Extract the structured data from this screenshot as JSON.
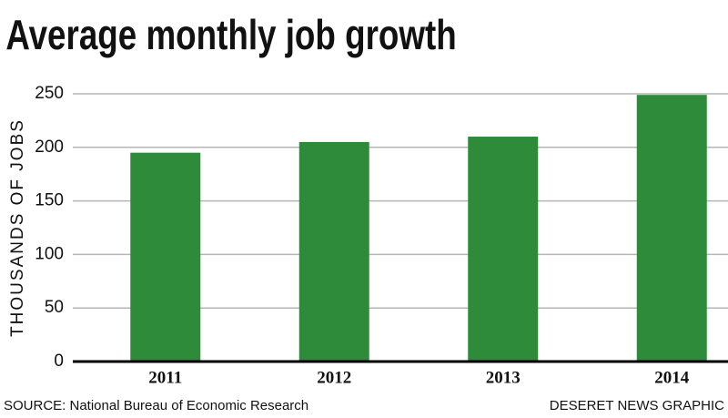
{
  "chart_data": {
    "type": "bar",
    "title": "Average monthly job growth",
    "y_label": "THOUSANDS OF JOBS",
    "categories": [
      "2011",
      "2012",
      "2013",
      "2014"
    ],
    "values": [
      195,
      205,
      210,
      249
    ],
    "color": "#2e8b3a",
    "ylim": [
      0,
      250
    ],
    "yticks": [
      0,
      50,
      100,
      150,
      200,
      250
    ],
    "grid": true,
    "source": "SOURCE: National Bureau of Economic Research",
    "credit": "DESERET NEWS GRAPHIC"
  }
}
